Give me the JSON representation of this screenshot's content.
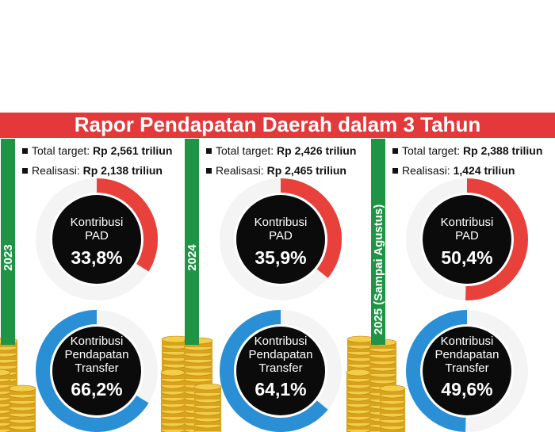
{
  "title": "Rapor Pendapatan Daerah dalam 3 Tahun",
  "chart_data": [
    {
      "type": "donut-pair",
      "title": "2023",
      "annotations": [
        {
          "label": "Total target:",
          "text": "Rp 2,561 triliun"
        },
        {
          "label": "Realisasi:",
          "text": "Rp 2,138 triliun"
        }
      ],
      "categories": [
        "Kontribusi PAD",
        "Kontribusi Pendapatan Transfer"
      ],
      "values": [
        33.8,
        66.2
      ],
      "value_labels": [
        "33,8%",
        "66,2%"
      ],
      "colors": [
        "#e8413c",
        "#2a8fd4"
      ]
    },
    {
      "type": "donut-pair",
      "title": "2024",
      "annotations": [
        {
          "label": "Total target:",
          "text": "Rp 2,426 triliun"
        },
        {
          "label": "Realisasi:",
          "text": "Rp 2,465 triliun"
        }
      ],
      "categories": [
        "Kontribusi PAD",
        "Kontribusi Pendapatan Transfer"
      ],
      "values": [
        35.9,
        64.1
      ],
      "value_labels": [
        "35,9%",
        "64,1%"
      ],
      "colors": [
        "#e8413c",
        "#2a8fd4"
      ]
    },
    {
      "type": "donut-pair",
      "title": "2025 (Sampai Agustus)",
      "annotations": [
        {
          "label": "Total target:",
          "text": "Rp 2,388 triliun"
        },
        {
          "label": "Realisasi:",
          "text": "1,424 triliun"
        }
      ],
      "categories": [
        "Kontribusi PAD",
        "Kontribusi Pendapatan Transfer"
      ],
      "values": [
        50.4,
        49.6
      ],
      "value_labels": [
        "50,4%",
        "49,6%"
      ],
      "colors": [
        "#e8413c",
        "#2a8fd4"
      ]
    }
  ]
}
